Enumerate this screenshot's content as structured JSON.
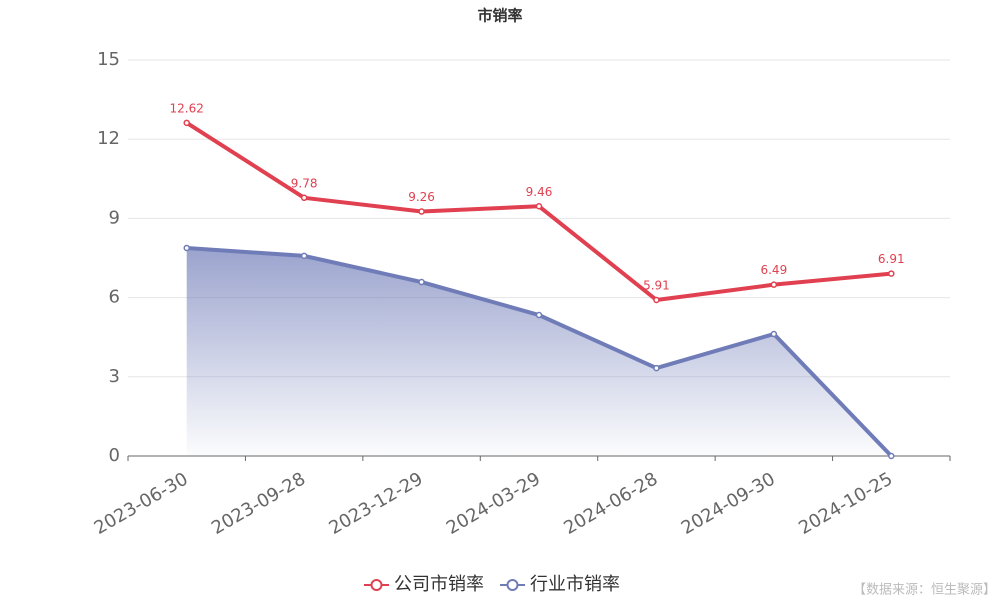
{
  "chart_data": {
    "type": "line",
    "title": "市销率",
    "categories": [
      "2023-06-30",
      "2023-09-28",
      "2023-12-29",
      "2024-03-29",
      "2024-06-28",
      "2024-09-30",
      "2024-10-25"
    ],
    "series": [
      {
        "name": "公司市销率",
        "color": "#e0404f",
        "values": [
          12.62,
          9.78,
          9.26,
          9.46,
          5.91,
          6.49,
          6.91
        ],
        "labels": true,
        "area": false
      },
      {
        "name": "行业市销率",
        "color": "#6f7cb8",
        "values": [
          7.88,
          7.58,
          6.59,
          5.34,
          3.33,
          4.62,
          0
        ],
        "labels": false,
        "area": true
      }
    ],
    "ylim": [
      0,
      15
    ],
    "yticks": [
      0,
      3,
      6,
      9,
      12,
      15
    ],
    "grid": true,
    "legend": "bottom",
    "source": "【数据来源：恒生聚源】"
  }
}
